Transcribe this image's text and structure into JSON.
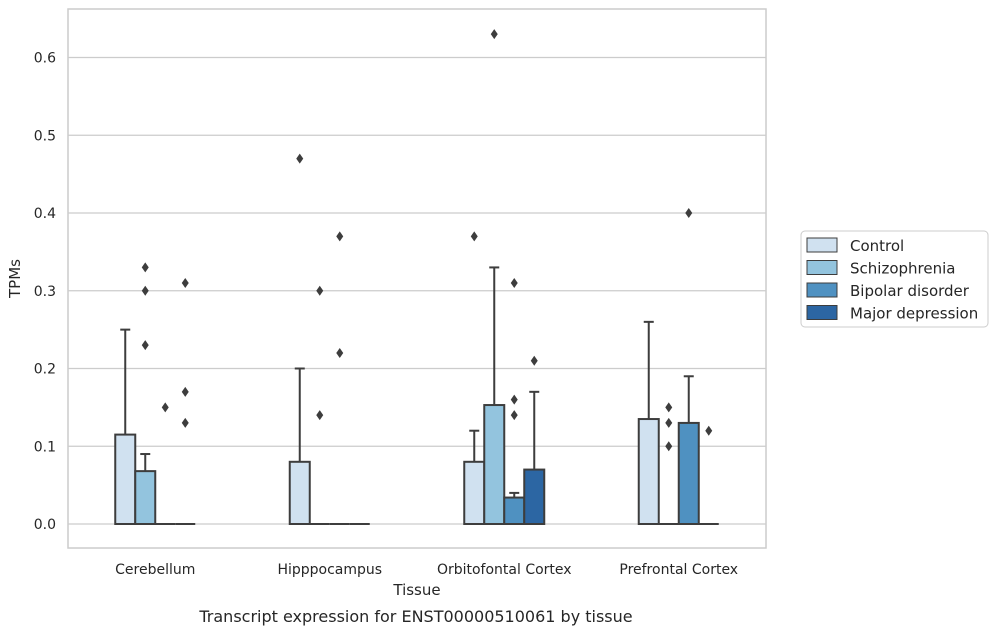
{
  "caption": "Transcript expression for ENST00000510061 by tissue",
  "chart_data": {
    "type": "bar",
    "title": "",
    "xlabel": "Tissue",
    "ylabel": "TPMs",
    "ylim": [
      -0.03,
      0.66
    ],
    "yticks": [
      0.0,
      0.1,
      0.2,
      0.3,
      0.4,
      0.5,
      0.6
    ],
    "ytick_labels": [
      "0.0",
      "0.1",
      "0.2",
      "0.3",
      "0.4",
      "0.5",
      "0.6"
    ],
    "grid": "horizontal",
    "legend_position": "right",
    "categories": [
      "Cerebellum",
      "Hipppocampus",
      "Orbitofontal Cortex",
      "Prefrontal Cortex"
    ],
    "series": [
      {
        "name": "Control",
        "color": "#d0e1f0",
        "values": [
          0.115,
          0.08,
          0.08,
          0.135
        ],
        "whisker_high": [
          0.25,
          0.2,
          0.12,
          0.26
        ],
        "outliers": [
          [],
          [
            0.47
          ],
          [
            0.37
          ],
          []
        ]
      },
      {
        "name": "Schizophrenia",
        "color": "#93c4de",
        "values": [
          0.068,
          0.0,
          0.153,
          0.0
        ],
        "whisker_high": [
          0.09,
          null,
          0.33,
          null
        ],
        "outliers": [
          [
            0.33,
            0.3,
            0.23
          ],
          [
            0.3,
            0.14
          ],
          [
            0.63
          ],
          [
            0.15,
            0.13,
            0.1
          ]
        ]
      },
      {
        "name": "Bipolar disorder",
        "color": "#4f91c1",
        "values": [
          0.0,
          0.0,
          0.034,
          0.13
        ],
        "whisker_high": [
          null,
          null,
          0.04,
          0.19
        ],
        "outliers": [
          [
            0.15
          ],
          [
            0.37,
            0.22
          ],
          [
            0.31,
            0.16,
            0.14
          ],
          [
            0.4
          ]
        ]
      },
      {
        "name": "Major depression",
        "color": "#2c66a3",
        "values": [
          0.0,
          0.0,
          0.07,
          0.0
        ],
        "whisker_high": [
          null,
          null,
          0.17,
          null
        ],
        "outliers": [
          [
            0.31,
            0.17,
            0.13
          ],
          [],
          [
            0.21
          ],
          [
            0.12
          ]
        ]
      }
    ]
  }
}
